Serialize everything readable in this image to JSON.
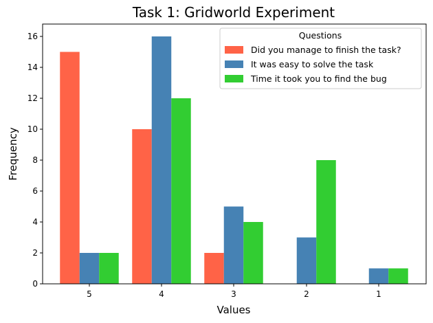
{
  "chart_data": {
    "type": "bar",
    "title": "Task 1: Gridworld Experiment",
    "xlabel": "Values",
    "ylabel": "Frequency",
    "categories": [
      "5",
      "4",
      "3",
      "2",
      "1"
    ],
    "ylim": [
      0,
      16.8
    ],
    "yticks": [
      0,
      2,
      4,
      6,
      8,
      10,
      12,
      14,
      16
    ],
    "grid": false,
    "legend": {
      "title": "Questions",
      "placement": "top-right"
    },
    "series": [
      {
        "name": "Did you manage to finish the task?",
        "color": "#ff6347",
        "values": [
          15,
          10,
          2,
          0,
          0
        ]
      },
      {
        "name": "It was easy to solve the task",
        "color": "#4682b4",
        "values": [
          2,
          16,
          5,
          3,
          1
        ]
      },
      {
        "name": "Time it took you to find the bug",
        "color": "#32cd32",
        "values": [
          2,
          12,
          4,
          8,
          1
        ]
      }
    ]
  }
}
